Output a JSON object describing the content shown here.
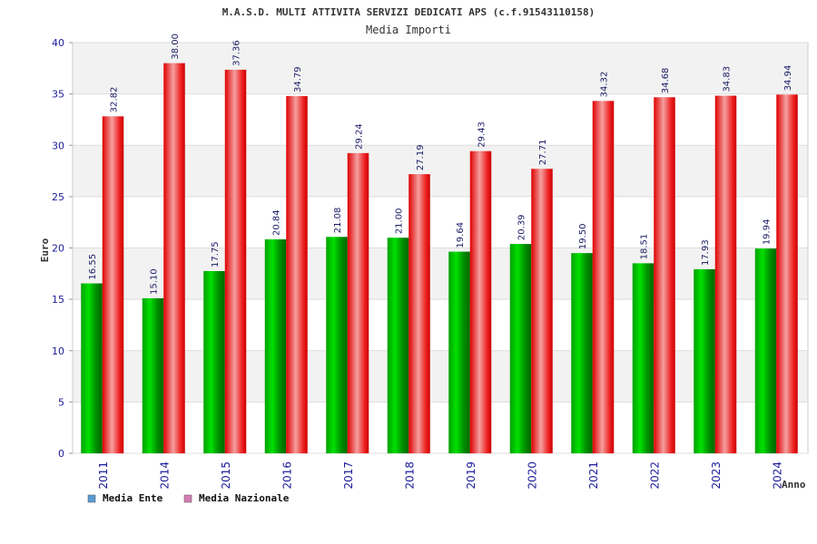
{
  "chart_data": {
    "type": "bar",
    "title": "M.A.S.D. MULTI ATTIVITA SERVIZI DEDICATI APS (c.f.91543110158)",
    "subtitle": "Media Importi",
    "xlabel": "Anno",
    "ylabel": "Euro",
    "ylim": [
      0,
      40
    ],
    "yticks": [
      0,
      5,
      10,
      15,
      20,
      25,
      30,
      35,
      40
    ],
    "grid": "horizontal alternating bands",
    "legend_position": "bottom-left",
    "categories": [
      "2011",
      "2014",
      "2015",
      "2016",
      "2017",
      "2018",
      "2019",
      "2020",
      "2021",
      "2022",
      "2023",
      "2024"
    ],
    "series": [
      {
        "name": "Media Ente",
        "color": "#00c000",
        "legend_color": "#5b9bd5",
        "values": [
          16.55,
          15.1,
          17.75,
          20.84,
          21.08,
          21.0,
          19.64,
          20.39,
          19.5,
          18.51,
          17.93,
          19.94
        ],
        "labels": [
          "16.55",
          "15.10",
          "17.75",
          "20.84",
          "21.08",
          "21.00",
          "19.64",
          "20.39",
          "19.50",
          "18.51",
          "17.93",
          "19.94"
        ]
      },
      {
        "name": "Media Nazionale",
        "color": "#ee1111",
        "legend_color": "#d67bb5",
        "values": [
          32.82,
          38.0,
          37.36,
          34.79,
          29.24,
          27.19,
          29.43,
          27.71,
          34.32,
          34.68,
          34.83,
          34.94
        ],
        "labels": [
          "32.82",
          "38.00",
          "37.36",
          "34.79",
          "29.24",
          "27.19",
          "29.43",
          "27.71",
          "34.32",
          "34.68",
          "34.83",
          "34.94"
        ]
      }
    ]
  }
}
